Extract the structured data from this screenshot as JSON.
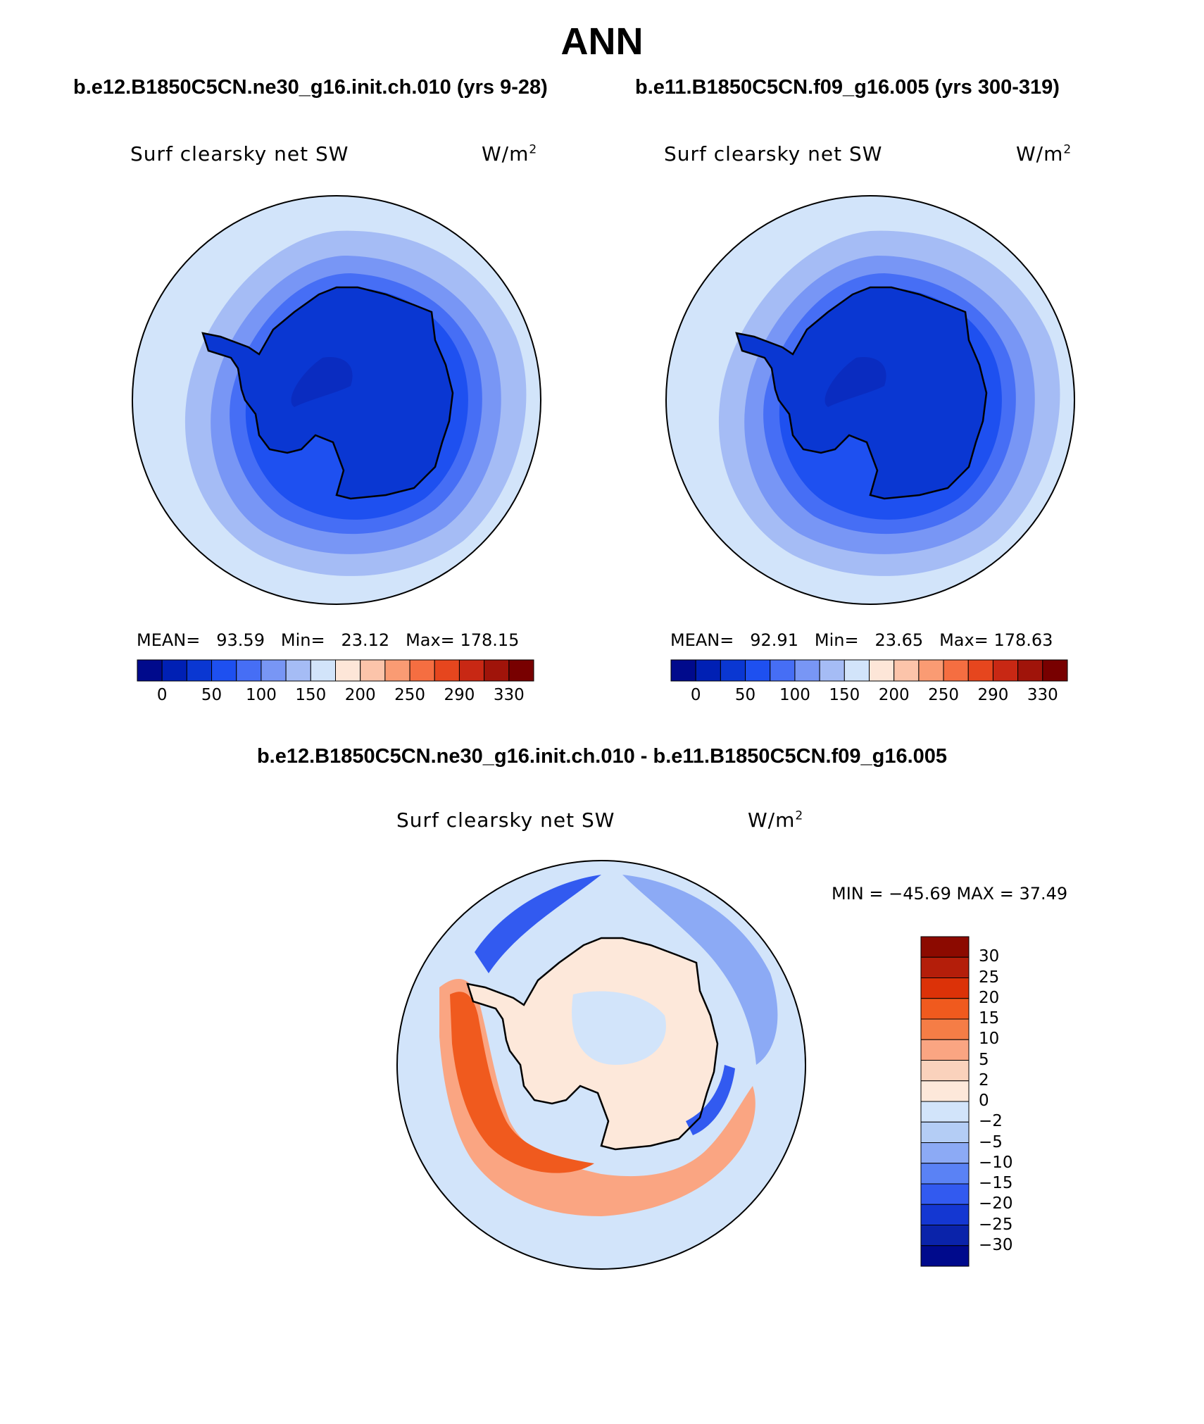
{
  "title": "ANN",
  "panel_a": {
    "case_title": "b.e12.B1850C5CN.ne30_g16.init.ch.010 (yrs 9-28)",
    "variable": "Surf clearsky net SW",
    "units_base": "W/m",
    "units_exp": "2",
    "mean_label": "MEAN=",
    "mean_value": "93.59",
    "min_label": "Min=",
    "min_value": "23.12",
    "max_label": "Max=",
    "max_value": "178.15"
  },
  "panel_b": {
    "case_title": "b.e11.B1850C5CN.f09_g16.005 (yrs 300-319)",
    "variable": "Surf clearsky net SW",
    "units_base": "W/m",
    "units_exp": "2",
    "mean_label": "MEAN=",
    "mean_value": "92.91",
    "min_label": "Min=",
    "min_value": "23.65",
    "max_label": "Max=",
    "max_value": "178.63"
  },
  "panel_diff": {
    "case_title": "b.e12.B1850C5CN.ne30_g16.init.ch.010 - b.e11.B1850C5CN.f09_g16.005",
    "variable": "Surf clearsky net SW",
    "units_base": "W/m",
    "units_exp": "2",
    "minmax": "MIN = −45.69 MAX =   37.49"
  },
  "colorbar_abs": {
    "colors": [
      "#000a8c",
      "#0020b4",
      "#0a37d2",
      "#1e50f0",
      "#466ef5",
      "#7896f5",
      "#a5bcf5",
      "#d2e4fa",
      "#fde6d8",
      "#fcc4aa",
      "#fa9b73",
      "#f56e41",
      "#e6461e",
      "#c82814",
      "#a0140a",
      "#780000"
    ],
    "labels": [
      "0",
      "50",
      "100",
      "150",
      "200",
      "250",
      "290",
      "330"
    ]
  },
  "colorbar_diff": {
    "colors": [
      "#8c0a00",
      "#b41e0a",
      "#dc3208",
      "#f05a1e",
      "#f57d46",
      "#faa582",
      "#fad2bc",
      "#fde8da",
      "#d2e4fa",
      "#b4cdf5",
      "#8caaf5",
      "#5a82f5",
      "#325af0",
      "#1437d2",
      "#0a23aa",
      "#000a8c"
    ],
    "labels": [
      "30",
      "25",
      "20",
      "15",
      "10",
      "5",
      "2",
      "0",
      "−2",
      "−5",
      "−10",
      "−15",
      "−20",
      "−25",
      "−30"
    ]
  },
  "colors": {
    "ocean_outer": "#d2e4fa",
    "ocean_mid": "#a5bcf5",
    "ocean_inner": "#7896f5",
    "ice_edge": "#466ef5",
    "coast": "#1e50f0",
    "continent": "#0a37d2",
    "plateau": "#0a2cc0",
    "diff_pos_strong": "#f05a1e",
    "diff_pos": "#faa582",
    "diff_pos_weak": "#fde8da",
    "diff_neg": "#8caaf5",
    "diff_neg_strong": "#325af0"
  }
}
